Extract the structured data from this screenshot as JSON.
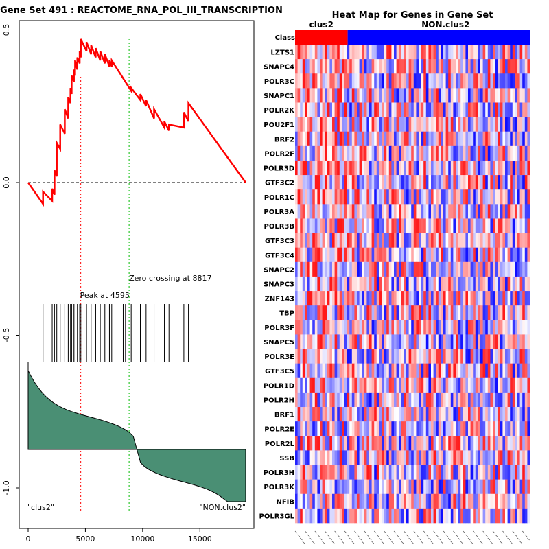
{
  "chart_data": [
    {
      "type": "line",
      "title": "Gene Set  491 : REACTOME_RNA_POL_III_TRANSCRIPTION",
      "xlim": [
        0,
        19000
      ],
      "ylim": [
        -1.15,
        0.52
      ],
      "x_ticks": [
        "0",
        "5000",
        "10000",
        "15000"
      ],
      "x_tick_values": [
        0,
        5000,
        10000,
        15000
      ],
      "y_ticks": [
        "0.5",
        "0.0",
        "-0.5",
        "-1.0"
      ],
      "y_tick_values": [
        0.5,
        0.0,
        -0.5,
        -1.0
      ],
      "running_es": {
        "x": [
          0,
          1300,
          1300,
          2100,
          2100,
          2300,
          2300,
          2500,
          2500,
          2800,
          2800,
          3200,
          3200,
          3500,
          3500,
          3700,
          3700,
          3800,
          3800,
          4000,
          4000,
          4100,
          4100,
          4300,
          4300,
          4500,
          4500,
          4600,
          4600,
          5100,
          5100,
          5500,
          5500,
          5900,
          5900,
          6300,
          6300,
          6700,
          6700,
          7100,
          7100,
          7300,
          7300,
          9000,
          9000,
          9800,
          9800,
          10300,
          10300,
          11000,
          11000,
          11900,
          11900,
          12300,
          12300,
          13600,
          13600,
          14000,
          14000,
          19000
        ],
        "y": [
          0.0,
          -0.07,
          -0.03,
          -0.06,
          -0.02,
          -0.04,
          0.04,
          0.02,
          0.13,
          0.11,
          0.19,
          0.16,
          0.24,
          0.21,
          0.28,
          0.26,
          0.31,
          0.29,
          0.35,
          0.33,
          0.37,
          0.35,
          0.4,
          0.37,
          0.41,
          0.39,
          0.43,
          0.41,
          0.47,
          0.43,
          0.46,
          0.42,
          0.45,
          0.41,
          0.44,
          0.4,
          0.43,
          0.39,
          0.42,
          0.38,
          0.4,
          0.38,
          0.4,
          0.3,
          0.31,
          0.27,
          0.29,
          0.25,
          0.27,
          0.21,
          0.24,
          0.18,
          0.2,
          0.17,
          0.19,
          0.18,
          0.23,
          0.2,
          0.26,
          0.0
        ],
        "color": "#ff0000"
      },
      "peak_label": "Peak at 4595",
      "peak_x": 4595,
      "zero_crossing_label": "Zero crossing at 8817",
      "zero_crossing_x": 8817,
      "hit_positions": [
        1300,
        2100,
        2300,
        2500,
        2800,
        3200,
        3500,
        3700,
        3800,
        4000,
        4100,
        4300,
        4500,
        4600,
        5100,
        5500,
        5900,
        6300,
        6700,
        7100,
        7300,
        8300,
        8500,
        9000,
        9800,
        10300,
        11000,
        11900,
        12300,
        13600,
        14000
      ],
      "ranked_metric_color": "#4a8f74",
      "left_class_label": "\"clus2\"",
      "right_class_label": "\"NON.clus2\""
    },
    {
      "type": "heatmap",
      "title": "Heat Map for Genes in Gene Set",
      "class_row_label": "Class",
      "classes": [
        {
          "name": "clus2",
          "color": "#ff0000",
          "fraction": 0.224
        },
        {
          "name": "NON.clus2",
          "color": "#0000ff",
          "fraction": 0.776
        }
      ],
      "genes": [
        "LZTS1",
        "SNAPC4",
        "POLR3C",
        "SNAPC1",
        "POLR2K",
        "POU2F1",
        "BRF2",
        "POLR2F",
        "POLR3D",
        "GTF3C2",
        "POLR1C",
        "POLR3A",
        "POLR3B",
        "GTF3C3",
        "GTF3C4",
        "SNAPC2",
        "SNAPC3",
        "ZNF143",
        "TBP",
        "POLR3F",
        "SNAPC5",
        "POLR3E",
        "GTF3C5",
        "POLR1D",
        "POLR2H",
        "BRF1",
        "POLR2E",
        "POLR2L",
        "SSB",
        "POLR3H",
        "POLR3K",
        "NFIB",
        "POLR3GL"
      ],
      "n_samples": 95
    }
  ]
}
